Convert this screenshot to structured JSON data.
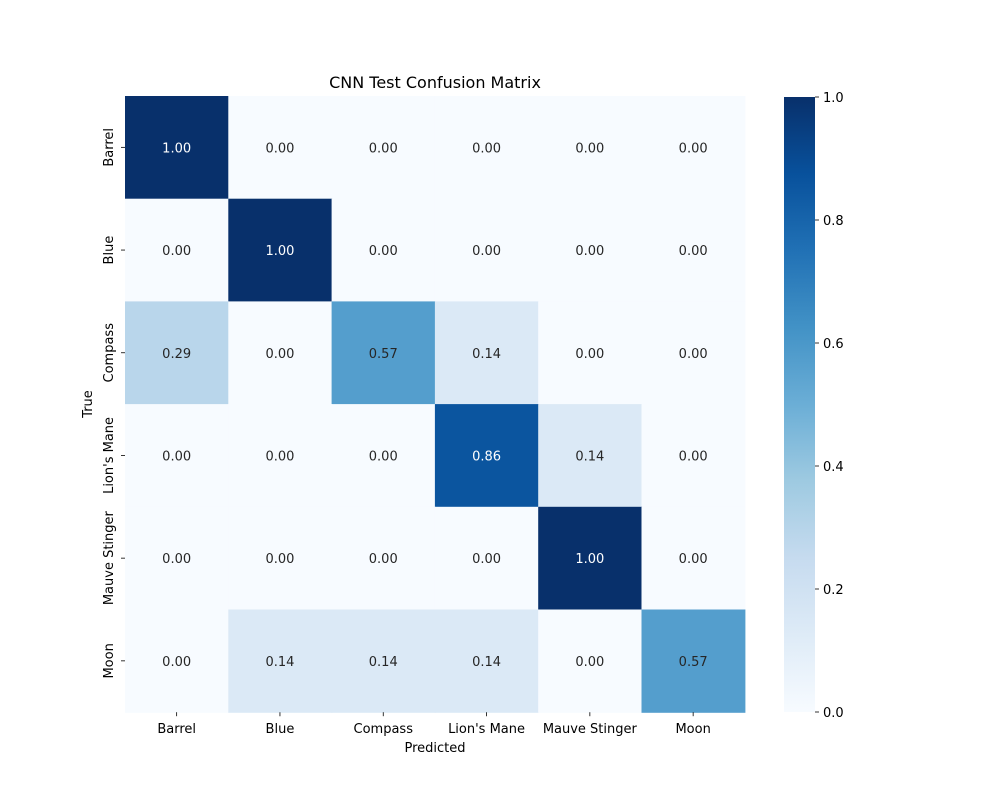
{
  "chart_data": {
    "type": "heatmap",
    "title": "CNN Test Confusion Matrix",
    "xlabel": "Predicted",
    "ylabel": "True",
    "x_categories": [
      "Barrel",
      "Blue",
      "Compass",
      "Lion's Mane",
      "Mauve Stinger",
      "Moon"
    ],
    "y_categories": [
      "Barrel",
      "Blue",
      "Compass",
      "Lion's Mane",
      "Mauve Stinger",
      "Moon"
    ],
    "values": [
      [
        1.0,
        0.0,
        0.0,
        0.0,
        0.0,
        0.0
      ],
      [
        0.0,
        1.0,
        0.0,
        0.0,
        0.0,
        0.0
      ],
      [
        0.29,
        0.0,
        0.57,
        0.14,
        0.0,
        0.0
      ],
      [
        0.0,
        0.0,
        0.0,
        0.86,
        0.14,
        0.0
      ],
      [
        0.0,
        0.0,
        0.0,
        0.0,
        1.0,
        0.0
      ],
      [
        0.0,
        0.14,
        0.14,
        0.14,
        0.0,
        0.57
      ]
    ],
    "value_format": "2 decimals",
    "colormap": "Blues",
    "colorbar": {
      "range": [
        0.0,
        1.0
      ],
      "ticks": [
        "0.0",
        "0.2",
        "0.4",
        "0.6",
        "0.8",
        "1.0"
      ]
    },
    "grid": false
  }
}
